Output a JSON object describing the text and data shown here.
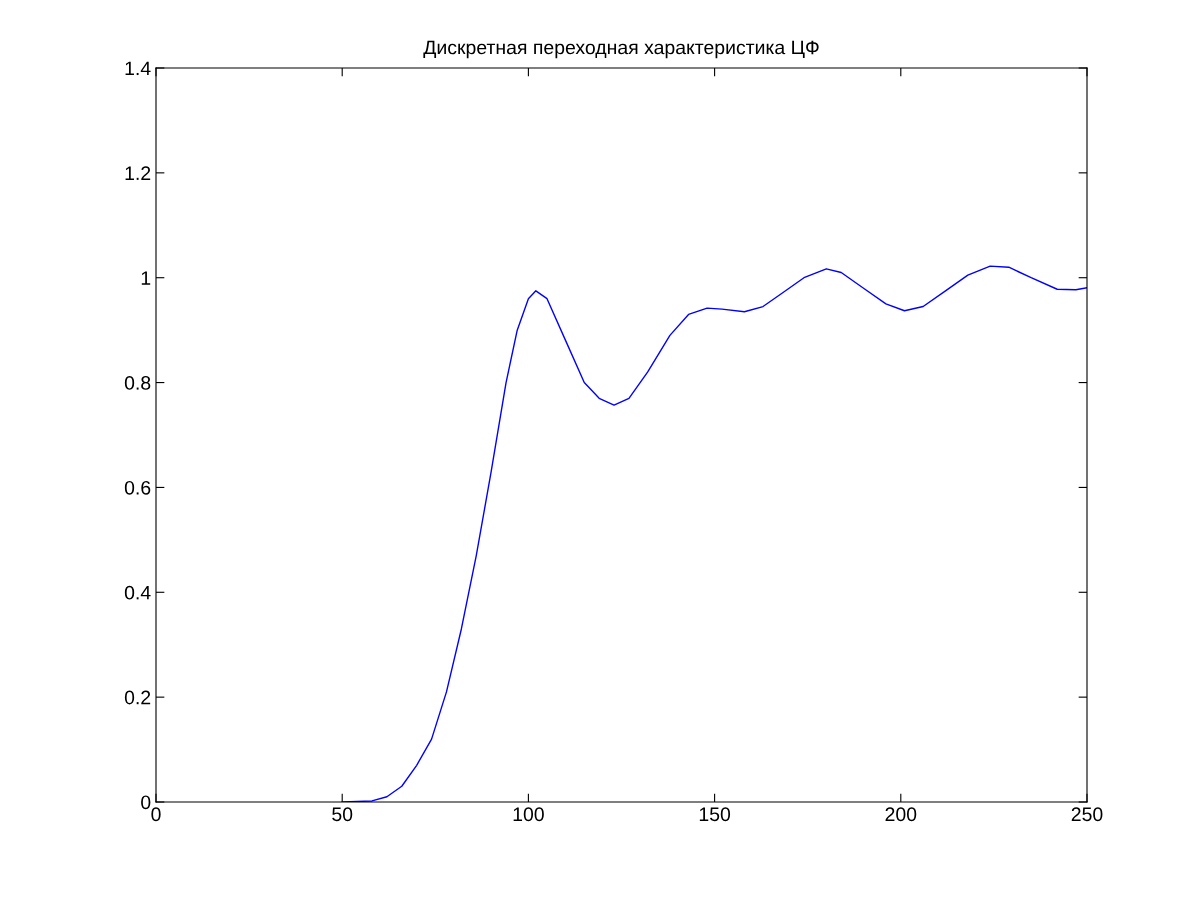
{
  "chart_data": {
    "type": "line",
    "title": "Дискретная переходная характеристика ЦФ",
    "xlim": [
      0,
      250
    ],
    "xticks": [
      0,
      50,
      100,
      150,
      200,
      250
    ],
    "ylim": [
      0,
      1.4
    ],
    "yticks": [
      0,
      0.2,
      0.4,
      0.6,
      0.8,
      1,
      1.2,
      1.4
    ],
    "grid": false,
    "legend": false,
    "marker": "none",
    "line_style": "solid",
    "series": [
      {
        "color": "#0000ff",
        "x": [
          50,
          58,
          62,
          66,
          70,
          74,
          78,
          82,
          86,
          90,
          94,
          97,
          100,
          102,
          105,
          110,
          115,
          119,
          123,
          127,
          132,
          138,
          143,
          148,
          152,
          158,
          163,
          168,
          174,
          180,
          184,
          190,
          196,
          201,
          206,
          212,
          218,
          224,
          229,
          235,
          242,
          247,
          250
        ],
        "values": [
          0,
          0.002,
          0.01,
          0.03,
          0.07,
          0.12,
          0.21,
          0.33,
          0.47,
          0.63,
          0.8,
          0.9,
          0.96,
          0.975,
          0.96,
          0.88,
          0.8,
          0.77,
          0.757,
          0.77,
          0.82,
          0.89,
          0.93,
          0.942,
          0.94,
          0.935,
          0.945,
          0.97,
          1.0,
          1.017,
          1.01,
          0.98,
          0.95,
          0.937,
          0.945,
          0.975,
          1.005,
          1.022,
          1.02,
          1.0,
          0.978,
          0.977,
          0.981
        ]
      }
    ]
  }
}
